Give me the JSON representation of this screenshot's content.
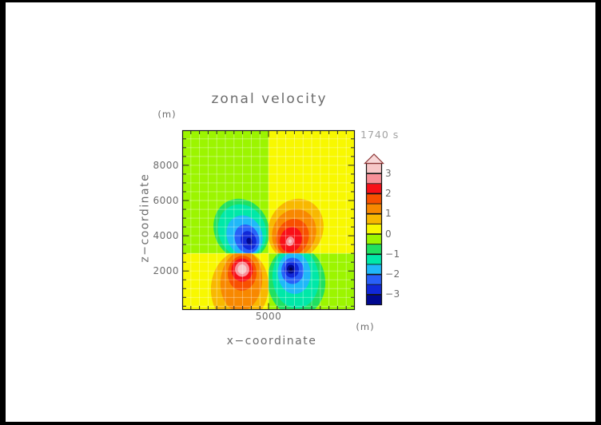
{
  "title": "zonal velocity",
  "time_label": "1740 s",
  "x_axis": {
    "label": "x−coordinate",
    "unit": "(m)",
    "tick_values": [
      5000
    ],
    "tick_labels": [
      "5000"
    ]
  },
  "y_axis": {
    "label": "z−coordinate",
    "unit": "(m)",
    "tick_values": [
      2000,
      4000,
      6000,
      8000
    ],
    "tick_labels": [
      "2000",
      "4000",
      "6000",
      "8000"
    ]
  },
  "colorbar": {
    "tick_values": [
      3,
      2,
      1,
      0,
      -1,
      -2,
      -3
    ],
    "tick_labels": [
      "3",
      "2",
      "1",
      "0",
      "−1",
      "−2",
      "−3"
    ],
    "overflow_arrow": {
      "fill": "#f8d8d8",
      "outline": "#8b3434"
    },
    "frame_color": "#151515"
  },
  "chart_data": {
    "type": "filled_contour",
    "title": "zonal velocity",
    "time": "1740 s",
    "xlabel": "x-coordinate (m)",
    "ylabel": "z-coordinate (m)",
    "x_range": [
      0,
      10000
    ],
    "z_range": [
      0,
      10000
    ],
    "value_range": [
      -3.5,
      3.5
    ],
    "contour_interval": 0.5,
    "minor_tick_interval_m": 500,
    "grid_interval_m": 500,
    "bands_bottom_to_top": [
      {
        "range": [
          -3.5,
          -3.0
        ],
        "color": "#000890"
      },
      {
        "range": [
          -3.0,
          -2.5
        ],
        "color": "#1028d8"
      },
      {
        "range": [
          -2.5,
          -2.0
        ],
        "color": "#2860f8"
      },
      {
        "range": [
          -2.0,
          -1.5
        ],
        "color": "#20b8f8"
      },
      {
        "range": [
          -1.5,
          -1.0
        ],
        "color": "#00e8a8"
      },
      {
        "range": [
          -1.0,
          -0.5
        ],
        "color": "#20e060"
      },
      {
        "range": [
          -0.5,
          0.0
        ],
        "color": "#9cf500"
      },
      {
        "range": [
          0.0,
          0.5
        ],
        "color": "#f8f800"
      },
      {
        "range": [
          0.5,
          1.0
        ],
        "color": "#f8b800"
      },
      {
        "range": [
          1.0,
          1.5
        ],
        "color": "#f88800"
      },
      {
        "range": [
          1.5,
          2.0
        ],
        "color": "#f85000"
      },
      {
        "range": [
          2.0,
          2.5
        ],
        "color": "#f81018"
      },
      {
        "range": [
          2.5,
          3.0
        ],
        "color": "#f89098"
      },
      {
        "range": [
          3.0,
          3.5
        ],
        "color": "#f8c8c8"
      }
    ],
    "background_quadrants": [
      {
        "position": "upper-left",
        "x": [
          0,
          5000
        ],
        "z": [
          3000,
          10000
        ],
        "value_band": [
          -0.5,
          0.0
        ],
        "color": "#9cf500"
      },
      {
        "position": "upper-right",
        "x": [
          5000,
          10000
        ],
        "z": [
          3000,
          10000
        ],
        "value_band": [
          0.0,
          0.5
        ],
        "color": "#f8f800"
      },
      {
        "position": "lower-left",
        "x": [
          0,
          5000
        ],
        "z": [
          0,
          3000
        ],
        "value_band": [
          0.0,
          0.5
        ],
        "color": "#f8f800"
      },
      {
        "position": "lower-right",
        "x": [
          5000,
          10000
        ],
        "z": [
          0,
          3000
        ],
        "value_band": [
          -0.5,
          0.0
        ],
        "color": "#9cf500"
      }
    ],
    "cells": [
      {
        "position": "upper-left",
        "center_x_m": 3750,
        "center_z_m": 3850,
        "peak_value": -3.2
      },
      {
        "position": "upper-right",
        "center_x_m": 6250,
        "center_z_m": 3750,
        "peak_value": 3.0
      },
      {
        "position": "lower-left",
        "center_x_m": 3500,
        "center_z_m": 2100,
        "peak_value": 3.4
      },
      {
        "position": "lower-right",
        "center_x_m": 6300,
        "center_z_m": 2100,
        "peak_value": -3.4
      }
    ],
    "render_lobes": [
      {
        "quadrant": "upper-left",
        "rings": [
          [
            302,
            287,
            34,
            39,
            -24,
            "#20e060"
          ],
          [
            303,
            289,
            29.5,
            34,
            -24,
            "#00e8a8"
          ],
          [
            306,
            295,
            22,
            26,
            -24,
            "#20b8f8"
          ],
          [
            309,
            299,
            15,
            18.5,
            -22,
            "#2860f8"
          ],
          [
            311,
            301,
            9.5,
            12,
            -20,
            "#1028d8"
          ],
          [
            312,
            302,
            3.5,
            4.5,
            -20,
            "#000890"
          ]
        ]
      },
      {
        "quadrant": "upper-right",
        "rings": [
          [
            370,
            287,
            34,
            39,
            24,
            "#f8b800"
          ],
          [
            368,
            292,
            27,
            31,
            24,
            "#f88800"
          ],
          [
            366,
            297,
            20,
            23.5,
            22,
            "#f85000"
          ],
          [
            364,
            300,
            13.5,
            16,
            20,
            "#f81018"
          ],
          [
            363,
            302,
            5,
            6,
            20,
            "#f89098"
          ],
          [
            363,
            302,
            2,
            2.5,
            0,
            "#f8c8c8"
          ]
        ]
      },
      {
        "quadrant": "lower-left",
        "rings": [
          [
            300,
            360,
            36,
            46,
            6,
            "#f8b800"
          ],
          [
            302,
            352,
            26,
            38,
            6,
            "#f88800"
          ],
          [
            303,
            342,
            18,
            22,
            4,
            "#f85000"
          ],
          [
            303,
            338,
            13.5,
            14.5,
            0,
            "#f81018"
          ],
          [
            303,
            337,
            9,
            9.5,
            0,
            "#f89098"
          ],
          [
            303,
            337,
            5.5,
            6,
            0,
            "#f8c8c8"
          ]
        ]
      },
      {
        "quadrant": "lower-right",
        "rings": [
          [
            371,
            352,
            36,
            44,
            -6,
            "#20e060"
          ],
          [
            370,
            348,
            29,
            38,
            -6,
            "#00e8a8"
          ],
          [
            368,
            342,
            20.5,
            26,
            -4,
            "#20b8f8"
          ],
          [
            366,
            339,
            14,
            16.5,
            0,
            "#2860f8"
          ],
          [
            365,
            337.5,
            9,
            10,
            0,
            "#1028d8"
          ],
          [
            364,
            337,
            5,
            5.5,
            0,
            "#000890"
          ],
          [
            364,
            337,
            2,
            2.2,
            0,
            "#000050"
          ]
        ]
      }
    ],
    "grid_color": "rgba(255,255,255,0.38)",
    "frame_color": "#1a1a1a"
  }
}
